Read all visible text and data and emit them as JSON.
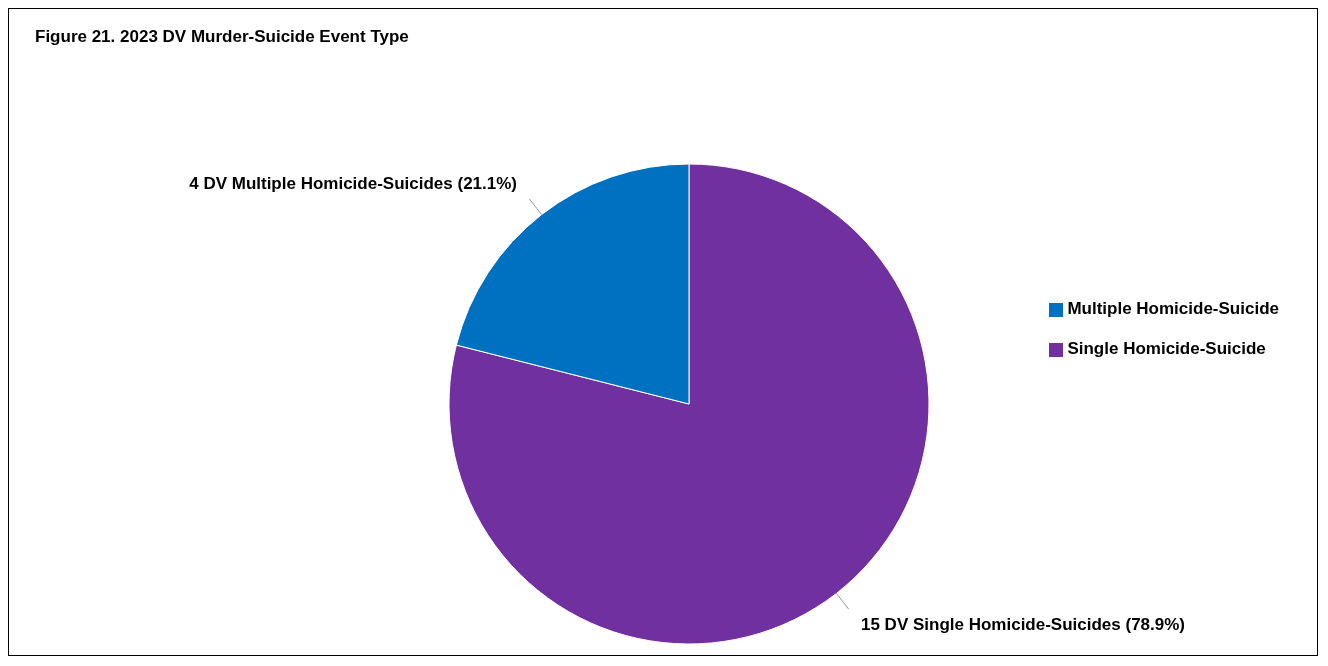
{
  "chart_data": {
    "type": "pie",
    "title": "Figure 21. 2023 DV Murder-Suicide Event Type",
    "categories": [
      "Single Homicide-Suicide",
      "Multiple Homicide-Suicide"
    ],
    "values": [
      15,
      4
    ],
    "colors": [
      "#7030a0",
      "#0070c0"
    ],
    "value_labels": [
      "15 DV Single Homicide-Suicides (78.9%)",
      "4 DV Multiple Homicide-Suicides (21.1%)"
    ],
    "legend": "right"
  }
}
